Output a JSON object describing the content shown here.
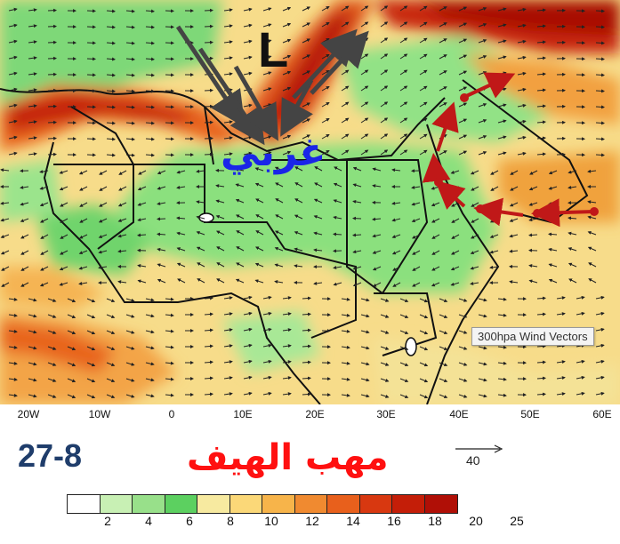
{
  "map": {
    "labels": {
      "low_pressure": "L",
      "region_word": "غربي"
    },
    "tooltip": "300hpa Wind Vectors",
    "longitude_labels": [
      "20W",
      "10W",
      "0",
      "10E",
      "20E",
      "30E",
      "40E",
      "50E",
      "60E"
    ]
  },
  "caption": {
    "date": "27-8",
    "title": "مهب الهيف",
    "reference_vector": "40"
  },
  "colorbar": {
    "labels": [
      "2",
      "4",
      "6",
      "8",
      "10",
      "12",
      "14",
      "16",
      "18",
      "20",
      "25"
    ],
    "colors": [
      "#ffffff",
      "#c8f0b4",
      "#98e08a",
      "#5cd060",
      "#f7eaa0",
      "#fbd878",
      "#f7b44a",
      "#f08a30",
      "#e8601c",
      "#d83810",
      "#c41e08",
      "#b00f06"
    ]
  },
  "annotation_colors": {
    "dark_arrows": "#444444",
    "red_arrows": "#c01818",
    "region_word": "#1a25e8",
    "title": "#ff1010",
    "date": "#1f3d6b"
  }
}
